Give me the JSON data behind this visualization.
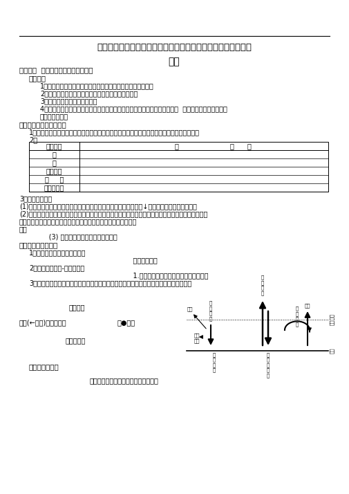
{
  "bg_color": "#ffffff",
  "line_color": "#000000",
  "title": "第二单元从地球圈层看地理环境第二节大气圈与天气、气候学案",
  "subtitle": "导学",
  "s1_title": "第一课时  大气的受热过程及水平运动",
  "goals_title": "学习目标",
  "goals": [
    "1、阅读示意图说明大气受热过程、大气保温作用的基本原理。",
    "2、绘制简单示意图，理解大气热力环流的形成过程。",
    "3、理解大气水平运动的成因。",
    "4、通过大气热力环流的基本原理解释城市热岛效应、海陆热力环流等现象。  学习重难点：大气的运动",
    "等级知识梳理。"
  ],
  "sec_a": "一、大气圈的组成与结构",
  "a1": "1．低层大气的组成包括：＿＿＿＿＿＿＿＿＿＿＿、＿＿＿＿＿＿＿＿＿＿＿、＿＿＿＿＿＿",
  "a2": "2．",
  "tbl_col1": "大气成分",
  "tbl_col2": "作",
  "tbl_col2b": "用",
  "tbl_rows": [
    "氮",
    "氧",
    "二氧化碳",
    "臭     氧",
    "水汽和杂质"
  ],
  "a3": "3．大气垂直分布",
  "a3_1": "(1)＿＿＿＿＿＿＿＿＿＿＿＿＿＿＿＿对流层；气温随高度增加而↓；空气量著；天气现象复杂",
  "a3_2a": "(2)＿＿＿＿＿＿＿＿＿＿＿＿＿＿＿＿平流层；大气主要靠＿＿＿＿＿＿＿＿增温；气温随高度增加而",
  "a3_2b": "＿＿＿＿＿＿＿＿＿＿＿＿＿＿＿＿。大气以＿＿＿＿＿＿＿＿为",
  "a3_note": "上。",
  "a3_3": "     (3) 高层大气；电离层反射无线电波",
  "sec_b": "二、大气的受热过程",
  "b1": "1．吸收：具有＿＿＿＿＿＿＿",
  "b1b": "                                    一太阳辐射。",
  "b2": "2．大气保温作用-地面辐射：",
  "b2b": "                                    1.大气逆辐射：补偿地面辐射损失的热量",
  "b3": "3．意义：降低了白天的最高气温；升高＿＿＿＿了晚上的最低气温；降低了气温的日较差",
  "lbl_dimen": "地面辐射",
  "lbl_atm": "大气(←地面)吸太阳辐射",
  "lbl_ground": "＿●地面",
  "lbl_back": "大气逆辐射",
  "sec_c": "三、大气的运动",
  "c1": "十级图，地面＿＿＿＿＿＿＿＿＿＿＿"
}
